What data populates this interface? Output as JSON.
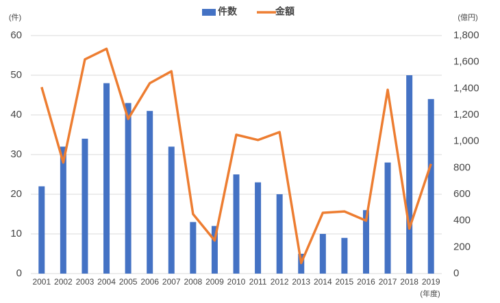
{
  "chart_data": {
    "type": "bar-line",
    "categories": [
      "2001",
      "2002",
      "2003",
      "2004",
      "2005",
      "2006",
      "2007",
      "2008",
      "2009",
      "2010",
      "2011",
      "2012",
      "2013",
      "2014",
      "2015",
      "2016",
      "2017",
      "2018",
      "2019"
    ],
    "series": [
      {
        "name": "件数",
        "color": "#4472c4",
        "type": "bar",
        "values": [
          22,
          32,
          34,
          48,
          43,
          41,
          32,
          13,
          12,
          25,
          23,
          20,
          5,
          10,
          9,
          16,
          28,
          50,
          44
        ]
      },
      {
        "name": "金額",
        "color": "#ed7d31",
        "type": "line",
        "axis": "y2",
        "values": [
          1410,
          840,
          1620,
          1700,
          1170,
          1440,
          1530,
          450,
          250,
          1050,
          1010,
          1070,
          80,
          460,
          470,
          400,
          1390,
          340,
          830
        ]
      }
    ],
    "ylabel": "(件)",
    "y2label": "(億円)",
    "xlabel": "(年度)",
    "ylim": [
      0,
      60
    ],
    "yticks": [
      0,
      10,
      20,
      30,
      40,
      50,
      60
    ],
    "y2lim": [
      0,
      1800
    ],
    "y2ticks": [
      0,
      200,
      400,
      600,
      800,
      {
        "value": 1000,
        "label": "1,000"
      },
      {
        "value": 1200,
        "label": "1,200"
      },
      {
        "value": 1400,
        "label": "1,400"
      },
      {
        "value": 1600,
        "label": "1,600"
      },
      {
        "value": 1800,
        "label": "1,800"
      }
    ],
    "grid": true,
    "legend": "top"
  }
}
